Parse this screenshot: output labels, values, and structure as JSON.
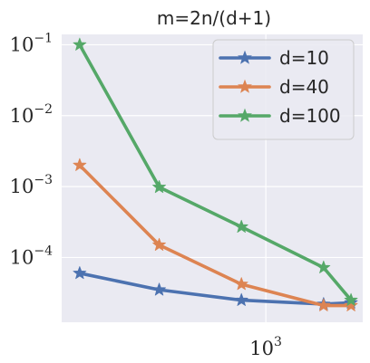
{
  "chart_data": {
    "type": "line",
    "title": "m=2n/(d+1)",
    "xlabel": "",
    "ylabel": "",
    "xscale": "log",
    "yscale": "log",
    "xlim": [
      190,
      2200
    ],
    "ylim": [
      1.22e-05,
      0.14
    ],
    "x": [
      220,
      420,
      820,
      1600,
      2000
    ],
    "grid": true,
    "legend_position": "top-right",
    "background": "#eaeaf2",
    "series": [
      {
        "name": "d=10",
        "color": "#4c72b0",
        "marker": "star",
        "values": [
          6e-05,
          3.5e-05,
          2.5e-05,
          2.2e-05,
          2.3e-05
        ]
      },
      {
        "name": "d=40",
        "color": "#dd8452",
        "marker": "star",
        "values": [
          0.002,
          0.00015,
          4.2e-05,
          2.1e-05,
          2.1e-05
        ]
      },
      {
        "name": "d=100",
        "color": "#55a868",
        "marker": "star",
        "values": [
          0.1,
          0.00098,
          0.00027,
          7.2e-05,
          2.5e-05
        ]
      }
    ],
    "yticks": [
      {
        "value": 0.1,
        "base": "10",
        "exp": "−1"
      },
      {
        "value": 0.01,
        "base": "10",
        "exp": "−2"
      },
      {
        "value": 0.001,
        "base": "10",
        "exp": "−3"
      },
      {
        "value": 0.0001,
        "base": "10",
        "exp": "−4"
      }
    ],
    "xticks": [
      {
        "value": 1000,
        "base": "10",
        "exp": "3"
      }
    ]
  }
}
